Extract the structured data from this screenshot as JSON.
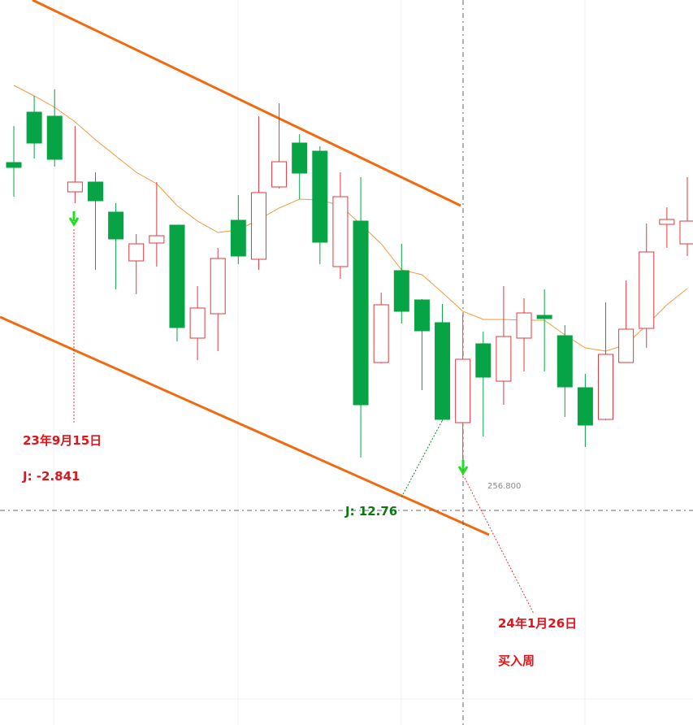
{
  "chart_data": {
    "type": "candlestick",
    "open": [
      333.8,
      346.2,
      345.2,
      326.6,
      329.0,
      321.6,
      309.6,
      314.0,
      318.4,
      290.6,
      296.6,
      319.6,
      310.0,
      327.8,
      338.6,
      336.6,
      308.2,
      319.4,
      284.6,
      307.2,
      300.0,
      294.4,
      269.8,
      289.2,
      280.0,
      290.6,
      296.2,
      291.2,
      278.4,
      270.6,
      284.6,
      293.0,
      318.6,
      313.8
    ],
    "close": [
      332.6,
      338.6,
      334.6,
      329.0,
      324.4,
      315.0,
      313.8,
      315.8,
      293.2,
      298.0,
      310.2,
      310.8,
      326.4,
      334.0,
      331.2,
      314.2,
      325.4,
      274.2,
      298.8,
      297.2,
      292.4,
      270.6,
      285.4,
      281.0,
      291.0,
      296.8,
      295.4,
      278.6,
      269.2,
      286.6,
      292.8,
      311.8,
      319.8,
      319.4
    ],
    "high": [
      342.8,
      350.2,
      351.8,
      342.8,
      331.4,
      323.8,
      316.2,
      329.0,
      318.4,
      303.4,
      312.8,
      325.8,
      345.2,
      348.4,
      340.8,
      337.8,
      331.4,
      330.2,
      301.8,
      313.8,
      300.2,
      299.0,
      296.4,
      292.2,
      303.4,
      300.4,
      302.6,
      293.8,
      281.8,
      299.4,
      304.8,
      318.8,
      322.8,
      330.2
    ],
    "low": [
      325.4,
      334.8,
      332.8,
      323.8,
      307.4,
      302.6,
      301.4,
      308.2,
      289.8,
      285.2,
      287.4,
      308.8,
      307.4,
      327.4,
      324.8,
      308.8,
      305.2,
      261.2,
      284.4,
      294.2,
      277.8,
      270.2,
      256.8,
      266.4,
      274.2,
      282.4,
      282.4,
      271.2,
      263.8,
      270.4,
      284.6,
      288.2,
      312.8,
      310.8
    ],
    "up_color": "#e0393e",
    "down_color": "#07a445",
    "ma": {
      "color": "#f39a3c",
      "values": [
        352.8,
        350.2,
        347.4,
        343.8,
        339.4,
        335.4,
        331.4,
        328.6,
        323.2,
        319.4,
        316.6,
        317.2,
        319.8,
        322.6,
        324.8,
        324.6,
        323.2,
        318.6,
        313.8,
        307.4,
        306.2,
        301.8,
        297.2,
        295.2,
        295.2,
        295.0,
        295.0,
        291.4,
        288.2,
        287.4,
        289.0,
        293.8,
        298.8,
        302.8
      ]
    },
    "ylim": [
      195.4,
      373.8
    ],
    "annotations": [
      "23年9月15日",
      "J: -2.841",
      "J: 12.76",
      "256.800",
      "24年1月26日",
      "买入周"
    ]
  }
}
